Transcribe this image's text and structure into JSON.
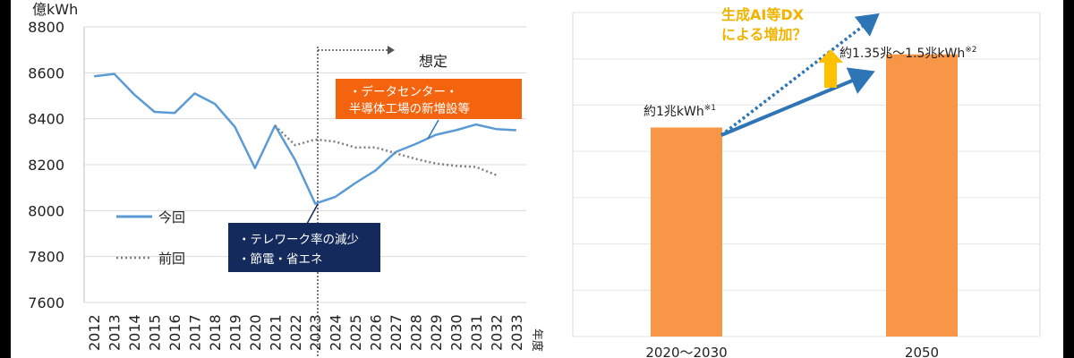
{
  "left_chart": {
    "unit_label": "億kWh",
    "fiscal_year_label": "年度",
    "forecast_label": "想定",
    "legend_current": "今回",
    "legend_previous": "前回",
    "callout_datacenter_line1": "・データセンター・",
    "callout_datacenter_line2": "半導体工場の新増設等",
    "callout_telework_line1": "・テレワーク率の減少",
    "callout_telework_line2": "・節電・省エネ",
    "colors": {
      "current": "#5b9bd5",
      "previous": "#7f7f7f",
      "orange_callout": "#f4640f",
      "navy_callout": "#142a5c"
    }
  },
  "right_chart": {
    "label_2020s": "約1兆kWh",
    "label_2020s_note": "※1",
    "label_2050": "約1.35兆～1.5兆kWh",
    "label_2050_note": "※2",
    "dx_line1": "生成AI等DX",
    "dx_line2": "による増加？",
    "colors": {
      "bar": "#f79646",
      "arrow": "#2e75b6",
      "up_arrow": "#ffc000",
      "dx_text": "#f0b400"
    }
  },
  "chart_data": [
    {
      "type": "line",
      "x": [
        "2012",
        "2013",
        "2014",
        "2015",
        "2016",
        "2017",
        "2018",
        "2019",
        "2020",
        "2021",
        "2022",
        "2023",
        "2024",
        "2025",
        "2026",
        "2027",
        "2028",
        "2029",
        "2030",
        "2031",
        "2032",
        "2033"
      ],
      "ylim": [
        7600,
        8800
      ],
      "yticks": [
        7600,
        7800,
        8000,
        8200,
        8400,
        8600,
        8800
      ],
      "ylabel": "億kWh",
      "xlabel": "年度",
      "grid": true,
      "legend": "bottom-left",
      "series": [
        {
          "name": "今回",
          "style": "solid",
          "values": [
            8585,
            8595,
            8505,
            8430,
            8425,
            8510,
            8465,
            8365,
            8185,
            8370,
            8220,
            8030,
            8060,
            8120,
            8175,
            8255,
            8290,
            8330,
            8350,
            8375,
            8355,
            8350
          ]
        },
        {
          "name": "前回",
          "style": "dotted",
          "values": [
            null,
            null,
            null,
            null,
            null,
            null,
            null,
            null,
            null,
            8370,
            8285,
            8310,
            8300,
            8275,
            8275,
            8250,
            8225,
            8205,
            8195,
            8190,
            8155,
            null
          ]
        }
      ]
    },
    {
      "type": "bar",
      "categories": [
        "2020～2030",
        "2050"
      ],
      "values": [
        1.0,
        1.35
      ],
      "value_unit": "兆kWh",
      "range_2050": [
        1.35,
        1.5
      ]
    }
  ]
}
